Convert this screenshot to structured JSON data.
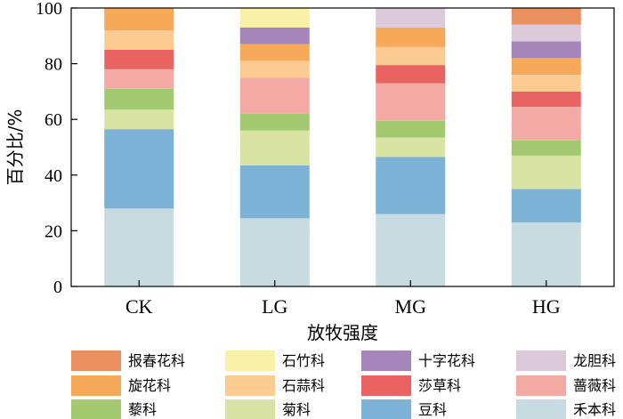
{
  "chart_data": {
    "type": "bar",
    "stacked": true,
    "xlabel": "放牧强度",
    "ylabel": "百分比/%",
    "ylim": [
      0,
      100
    ],
    "yticks": [
      0,
      20,
      40,
      60,
      80,
      100
    ],
    "categories": [
      "CK",
      "LG",
      "MG",
      "HG"
    ],
    "legend_position": "bottom",
    "series": [
      {
        "name": "禾本科",
        "color": "#c8dbe0",
        "values": [
          28,
          24.5,
          26,
          23
        ]
      },
      {
        "name": "豆科",
        "color": "#7bb2d6",
        "values": [
          28.5,
          19,
          20.5,
          12
        ]
      },
      {
        "name": "菊科",
        "color": "#d9e3a4",
        "values": [
          7,
          12.5,
          7,
          12
        ]
      },
      {
        "name": "藜科",
        "color": "#a2c970",
        "values": [
          7.5,
          6,
          6,
          5.5
        ]
      },
      {
        "name": "蔷薇科",
        "color": "#f4aaa4",
        "values": [
          7,
          13,
          13.5,
          12
        ]
      },
      {
        "name": "莎草科",
        "color": "#e96363",
        "values": [
          7,
          0,
          6.5,
          5.5
        ]
      },
      {
        "name": "石蒜科",
        "color": "#fbcb92",
        "values": [
          7,
          6,
          6.5,
          6
        ]
      },
      {
        "name": "旋花科",
        "color": "#f7a95a",
        "values": [
          8,
          6,
          7,
          6
        ]
      },
      {
        "name": "十字花科",
        "color": "#a585ba",
        "values": [
          0,
          6,
          0,
          6
        ]
      },
      {
        "name": "龙胆科",
        "color": "#dccadb",
        "values": [
          0,
          0,
          7,
          6
        ]
      },
      {
        "name": "石竹科",
        "color": "#faf1a8",
        "values": [
          0,
          7,
          0,
          0
        ]
      },
      {
        "name": "报春花科",
        "color": "#e98f60",
        "values": [
          0,
          0,
          0,
          6
        ]
      }
    ],
    "legend_order": [
      "报春花科",
      "石竹科",
      "十字花科",
      "龙胆科",
      "旋花科",
      "石蒜科",
      "莎草科",
      "蔷薇科",
      "藜科",
      "菊科",
      "豆科",
      "禾本科"
    ]
  }
}
